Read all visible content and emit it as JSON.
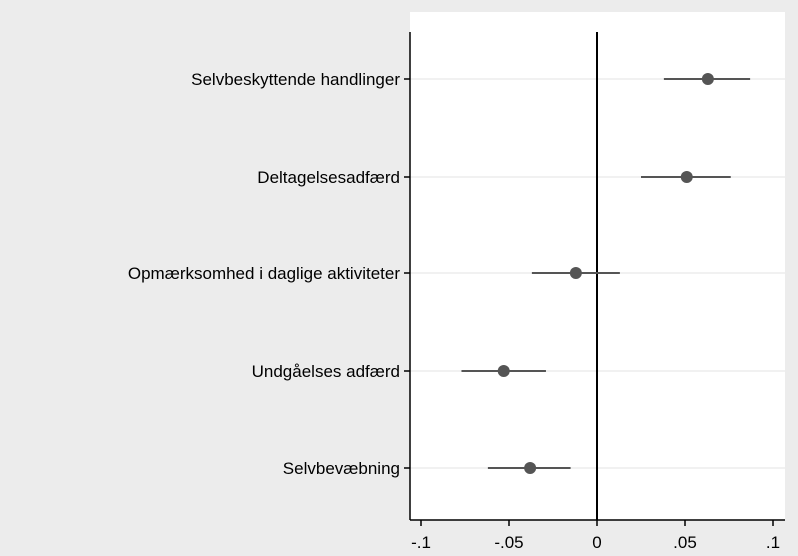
{
  "chart_data": {
    "type": "scatter",
    "subtype": "coefficient-plot",
    "title": "",
    "xlabel": "",
    "ylabel": "",
    "xlim": [
      -0.105,
      0.105
    ],
    "x_ticks": [
      -0.1,
      -0.05,
      0,
      0.05,
      0.1
    ],
    "x_tick_labels": [
      "-.1",
      "-.05",
      "0",
      ".05",
      ".1"
    ],
    "reference_line_x": 0,
    "grid": "horizontal",
    "legend": "none",
    "categories": [
      "Selvbeskyttende handlinger",
      "Deltagelsesadfærd",
      "Opmærksomhed i daglige aktiviteter",
      "Undgåelses adfærd",
      "Selvbevæbning"
    ],
    "series": [
      {
        "estimates": [
          0.063,
          0.051,
          -0.012,
          -0.053,
          -0.038
        ],
        "ci_low": [
          0.038,
          0.025,
          -0.037,
          -0.077,
          -0.062
        ],
        "ci_high": [
          0.087,
          0.076,
          0.013,
          -0.029,
          -0.015
        ]
      }
    ],
    "colors": {
      "plot_background": "#ffffff",
      "page_background": "#ececec",
      "marker": "#555555",
      "ci_line": "#555555",
      "gridline": "#e3e3e3",
      "axis": "#000000"
    }
  }
}
